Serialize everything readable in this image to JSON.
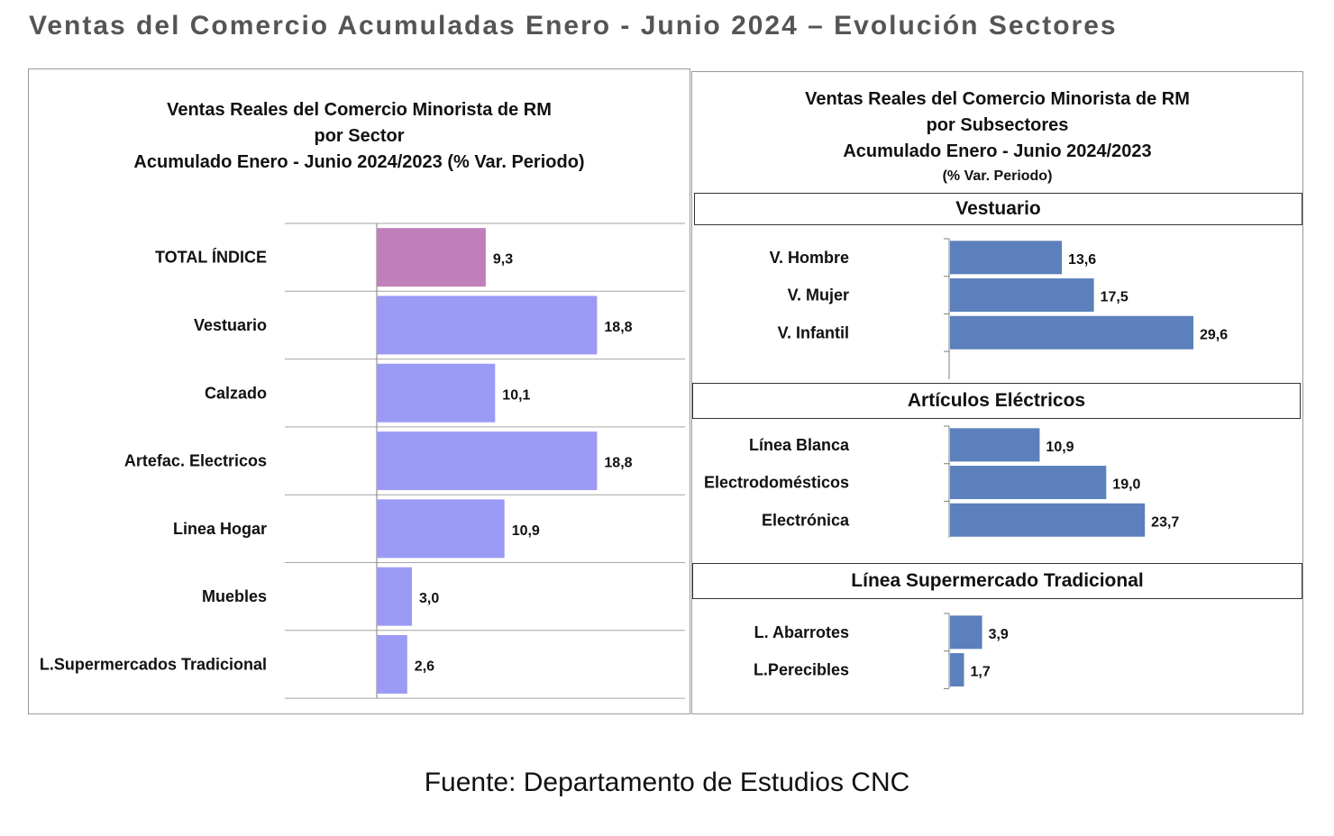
{
  "page": {
    "title": "Ventas del Comercio Acumuladas Enero - Junio 2024 – Evolución Sectores",
    "source": "Fuente: Departamento de Estudios CNC"
  },
  "colors": {
    "total_bar": "#c17fb9",
    "sector_bar": "#9b9bf5",
    "subsector_bar": "#5b80bb",
    "gridline": "#a6a6a6",
    "title_gray": "#555555"
  },
  "chart_data": [
    {
      "type": "bar",
      "orientation": "horizontal",
      "title_lines": [
        "Ventas Reales del Comercio Minorista de RM",
        "por Sector",
        "Acumulado Enero - Junio  2024/2023 (% Var. Periodo)"
      ],
      "categories": [
        "TOTAL ÍNDICE",
        "Vestuario",
        "Calzado",
        "Artefac. Electricos",
        "Linea Hogar",
        "Muebles",
        "L.Supermercados Tradicional"
      ],
      "values": [
        9.3,
        18.8,
        10.1,
        18.8,
        10.9,
        3.0,
        2.6
      ],
      "value_labels": [
        "9,3",
        "18,8",
        "10,1",
        "18,8",
        "10,9",
        "3,0",
        "2,6"
      ],
      "highlight_index": 0,
      "xlim": [
        0,
        50
      ],
      "grid": "horizontal row separators"
    },
    {
      "type": "bar",
      "orientation": "horizontal",
      "title_lines": [
        "Ventas Reales del Comercio Minorista de RM",
        "por Subsectores",
        "Acumulado Enero - Junio  2024/2023"
      ],
      "subtitle": "(% Var. Periodo)",
      "xlim": [
        0,
        44
      ],
      "groups": [
        {
          "name": "Vestuario",
          "categories": [
            "V. Hombre",
            "V. Mujer",
            "V. Infantil"
          ],
          "values": [
            13.6,
            17.5,
            29.6
          ],
          "value_labels": [
            "13,6",
            "17,5",
            "29,6"
          ]
        },
        {
          "name": "Artículos Eléctricos",
          "categories": [
            "Línea Blanca",
            "Electrodomésticos",
            "Electrónica"
          ],
          "values": [
            10.9,
            19.0,
            23.7
          ],
          "value_labels": [
            "10,9",
            "19,0",
            "23,7"
          ]
        },
        {
          "name": "Línea  Supermercado Tradicional",
          "categories": [
            "L. Abarrotes",
            "L.Perecibles"
          ],
          "values": [
            3.9,
            1.7
          ],
          "value_labels": [
            "3,9",
            "1,7"
          ]
        }
      ]
    }
  ]
}
